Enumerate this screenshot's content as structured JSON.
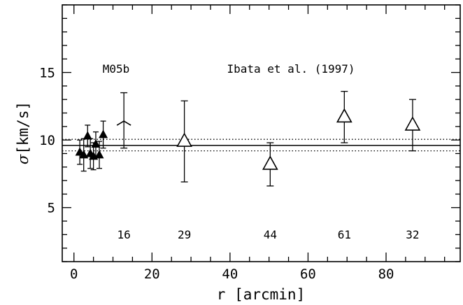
{
  "chart_data": {
    "type": "scatter",
    "xlabel": "r [arcmin]",
    "ylabel_symbol": "σ",
    "ylabel_unit": "[km/s]",
    "xlim": [
      -3,
      99
    ],
    "ylim": [
      1,
      20
    ],
    "x_ticks": [
      0,
      20,
      40,
      60,
      80
    ],
    "y_ticks": [
      5,
      10,
      15
    ],
    "x_tick_labels": [
      "0",
      "20",
      "40",
      "60",
      "80"
    ],
    "y_tick_labels": [
      "5",
      "10",
      "15"
    ],
    "x_minor_step": 5,
    "y_minor_step": 1,
    "grid": false,
    "reference_lines": {
      "mean": 9.6,
      "lower": 9.2,
      "upper": 10.05
    },
    "annotations": [
      "M05b",
      "Ibata et al. (1997)"
    ],
    "series": [
      {
        "marker": "filled-triangle",
        "points": [
          {
            "x": 1.5,
            "y": 9.1,
            "err": 0.9
          },
          {
            "x": 2.5,
            "y": 8.9,
            "err": 1.2
          },
          {
            "x": 3.5,
            "y": 10.3,
            "err": 0.8
          },
          {
            "x": 4.2,
            "y": 9.0,
            "err": 1.1
          },
          {
            "x": 5.0,
            "y": 8.8,
            "err": 1.0
          },
          {
            "x": 5.6,
            "y": 9.7,
            "err": 0.9
          },
          {
            "x": 6.5,
            "y": 8.9,
            "err": 1.0
          },
          {
            "x": 7.5,
            "y": 10.4,
            "err": 1.0
          }
        ]
      },
      {
        "marker": "upper-limit",
        "points": [
          {
            "x": 12.8,
            "y": 11.4,
            "err_low": 2.0,
            "err_high": 2.1
          }
        ]
      },
      {
        "marker": "open-triangle",
        "points": [
          {
            "x": 28.3,
            "y": 9.9,
            "err": 3.0
          },
          {
            "x": 50.3,
            "y": 8.2,
            "err": 1.6
          },
          {
            "x": 69.3,
            "y": 11.7,
            "err": 1.9
          },
          {
            "x": 86.8,
            "y": 11.1,
            "err": 1.9
          }
        ]
      }
    ],
    "counts": [
      {
        "x": 12.8,
        "label": "16"
      },
      {
        "x": 28.3,
        "label": "29"
      },
      {
        "x": 50.3,
        "label": "44"
      },
      {
        "x": 69.3,
        "label": "61"
      },
      {
        "x": 86.8,
        "label": "32"
      }
    ]
  }
}
